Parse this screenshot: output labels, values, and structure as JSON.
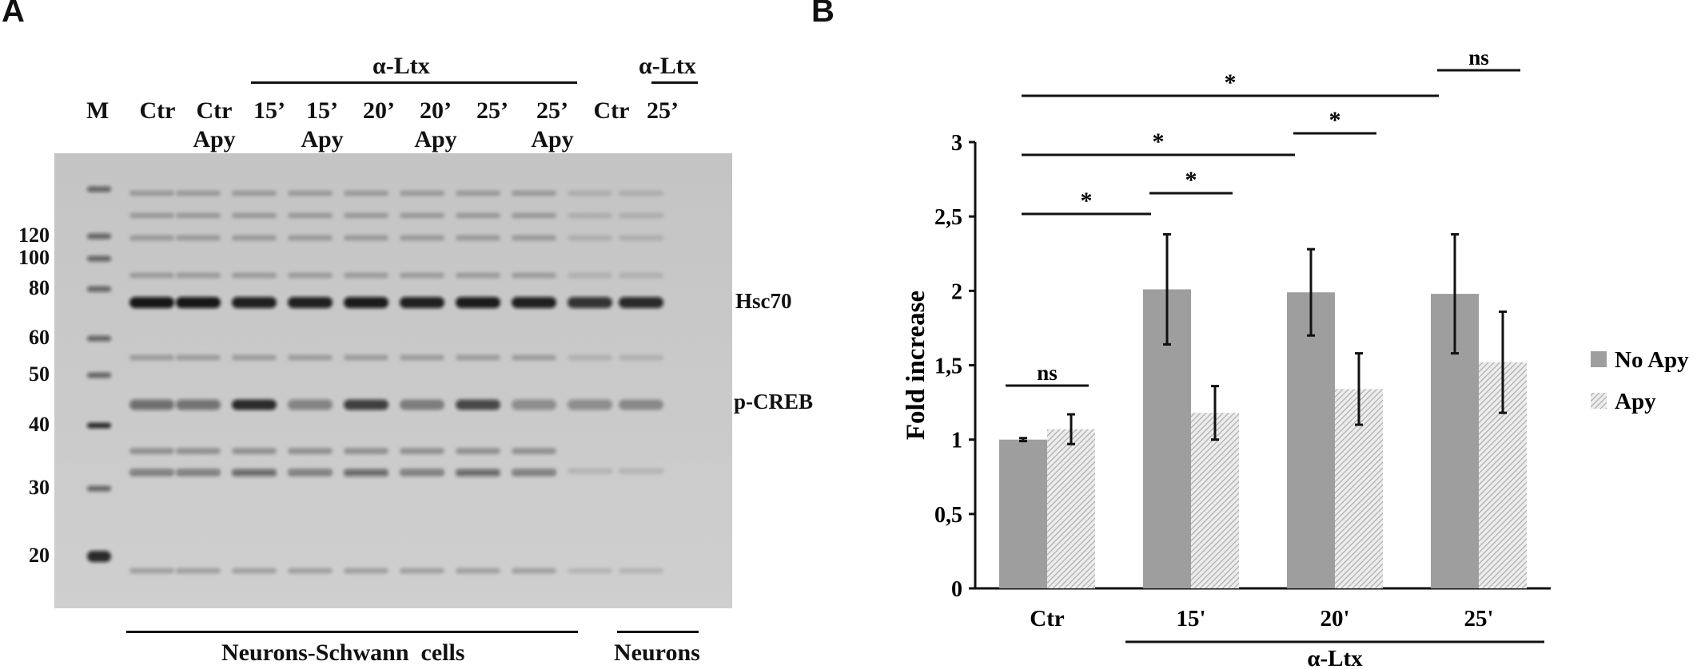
{
  "panels": {
    "a": "A",
    "b": "B"
  },
  "blot": {
    "marker_label": "M",
    "lanes": [
      {
        "line1": "Ctr",
        "line2": ""
      },
      {
        "line1": "Ctr",
        "line2": "Apy"
      },
      {
        "line1": "15’",
        "line2": ""
      },
      {
        "line1": "15’",
        "line2": "Apy"
      },
      {
        "line1": "20’",
        "line2": ""
      },
      {
        "line1": "20’",
        "line2": "Apy"
      },
      {
        "line1": "25’",
        "line2": ""
      },
      {
        "line1": "25’",
        "line2": "Apy"
      },
      {
        "line1": "Ctr",
        "line2": ""
      },
      {
        "line1": "25’",
        "line2": ""
      }
    ],
    "treatment_label_1": "α-Ltx",
    "treatment_label_2": "α-Ltx",
    "mw_markers": [
      "120",
      "100",
      "80",
      "60",
      "50",
      "40",
      "30",
      "20"
    ],
    "band_labels": {
      "upper": "Hsc70",
      "lower": "p-CREB"
    },
    "group_labels": {
      "mixed": "Neurons-Schwann  cells",
      "neurons": "Neurons"
    },
    "bands": {
      "hsc70": [
        0.95,
        0.95,
        0.9,
        0.9,
        0.92,
        0.9,
        0.92,
        0.9,
        0.8,
        0.85
      ],
      "pcreb": [
        0.5,
        0.48,
        0.85,
        0.4,
        0.75,
        0.38,
        0.7,
        0.35,
        0.35,
        0.32
      ]
    }
  },
  "chart_data": {
    "type": "bar",
    "categories": [
      "Ctr",
      "15'",
      "20'",
      "25'"
    ],
    "series": [
      {
        "name": "No Apy",
        "values": [
          1.0,
          2.01,
          1.99,
          1.98
        ],
        "errors": [
          0.01,
          0.37,
          0.29,
          0.4
        ],
        "pattern": "solid"
      },
      {
        "name": "Apy",
        "values": [
          1.07,
          1.18,
          1.34,
          1.52
        ],
        "errors": [
          0.1,
          0.18,
          0.24,
          0.34
        ],
        "pattern": "hatched"
      }
    ],
    "ylabel": "Fold increase",
    "xlabel": "α-Ltx",
    "ylim": [
      0,
      3
    ],
    "yticks": [
      "0",
      "0,5",
      "1",
      "1,5",
      "2",
      "2,5",
      "3"
    ],
    "legend_position": "right",
    "significance": [
      {
        "from": [
          0,
          0
        ],
        "to": [
          0,
          1
        ],
        "label": "ns"
      },
      {
        "from": [
          0,
          0
        ],
        "to": [
          1,
          0
        ],
        "label": "*"
      },
      {
        "from": [
          1,
          0
        ],
        "to": [
          1,
          1
        ],
        "label": "*"
      },
      {
        "from": [
          0,
          0
        ],
        "to": [
          2,
          0
        ],
        "label": "*"
      },
      {
        "from": [
          2,
          0
        ],
        "to": [
          2,
          1
        ],
        "label": "*"
      },
      {
        "from": [
          0,
          0
        ],
        "to": [
          3,
          0
        ],
        "label": "*"
      },
      {
        "from": [
          3,
          0
        ],
        "to": [
          3,
          1
        ],
        "label": "ns"
      }
    ],
    "colors": {
      "bar": "#9e9e9e",
      "hatch": "#b8b8b8"
    }
  }
}
